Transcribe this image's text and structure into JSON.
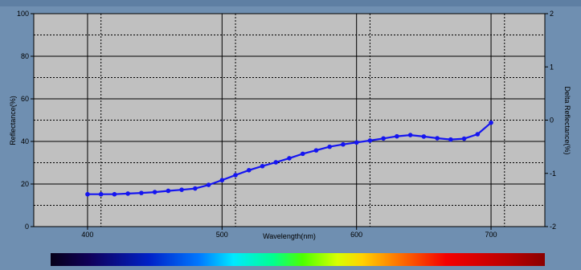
{
  "chart_data": {
    "type": "line",
    "xlabel": "Wavelength(nm)",
    "ylabel": "Reflectance(%)",
    "y2label": "Delta Reflectance(%)",
    "xlim": [
      360,
      740
    ],
    "ylim": [
      0,
      100
    ],
    "y2lim": [
      -2,
      2
    ],
    "xticks": [
      400,
      500,
      600,
      700
    ],
    "yticks": [
      0,
      20,
      40,
      60,
      80,
      100
    ],
    "y2ticks": [
      -2,
      -1,
      0,
      1,
      2
    ],
    "grid": true,
    "legend": "none",
    "series": [
      {
        "x": [
          400,
          410,
          420,
          430,
          440,
          450,
          460,
          470,
          480,
          490,
          500,
          510,
          520,
          530,
          540,
          550,
          560,
          570,
          580,
          590,
          600,
          610,
          620,
          630,
          640,
          650,
          660,
          670,
          680,
          690,
          700
        ],
        "y": [
          15.2,
          15.2,
          15.2,
          15.5,
          15.8,
          16.2,
          16.8,
          17.3,
          17.9,
          19.6,
          21.8,
          24.2,
          26.5,
          28.4,
          30.2,
          32.1,
          34.2,
          35.8,
          37.5,
          38.6,
          39.5,
          40.4,
          41.4,
          42.4,
          43.0,
          42.3,
          41.5,
          40.9,
          41.3,
          43.4,
          48.8
        ],
        "color": "#1515f0"
      }
    ],
    "spectrum_bar": {
      "x_range": [
        380,
        780
      ]
    }
  },
  "colors": {
    "background": "#6f8fb1",
    "plot_area": "#c0c0c0",
    "axis": "#000000",
    "series": "#1515f0"
  }
}
